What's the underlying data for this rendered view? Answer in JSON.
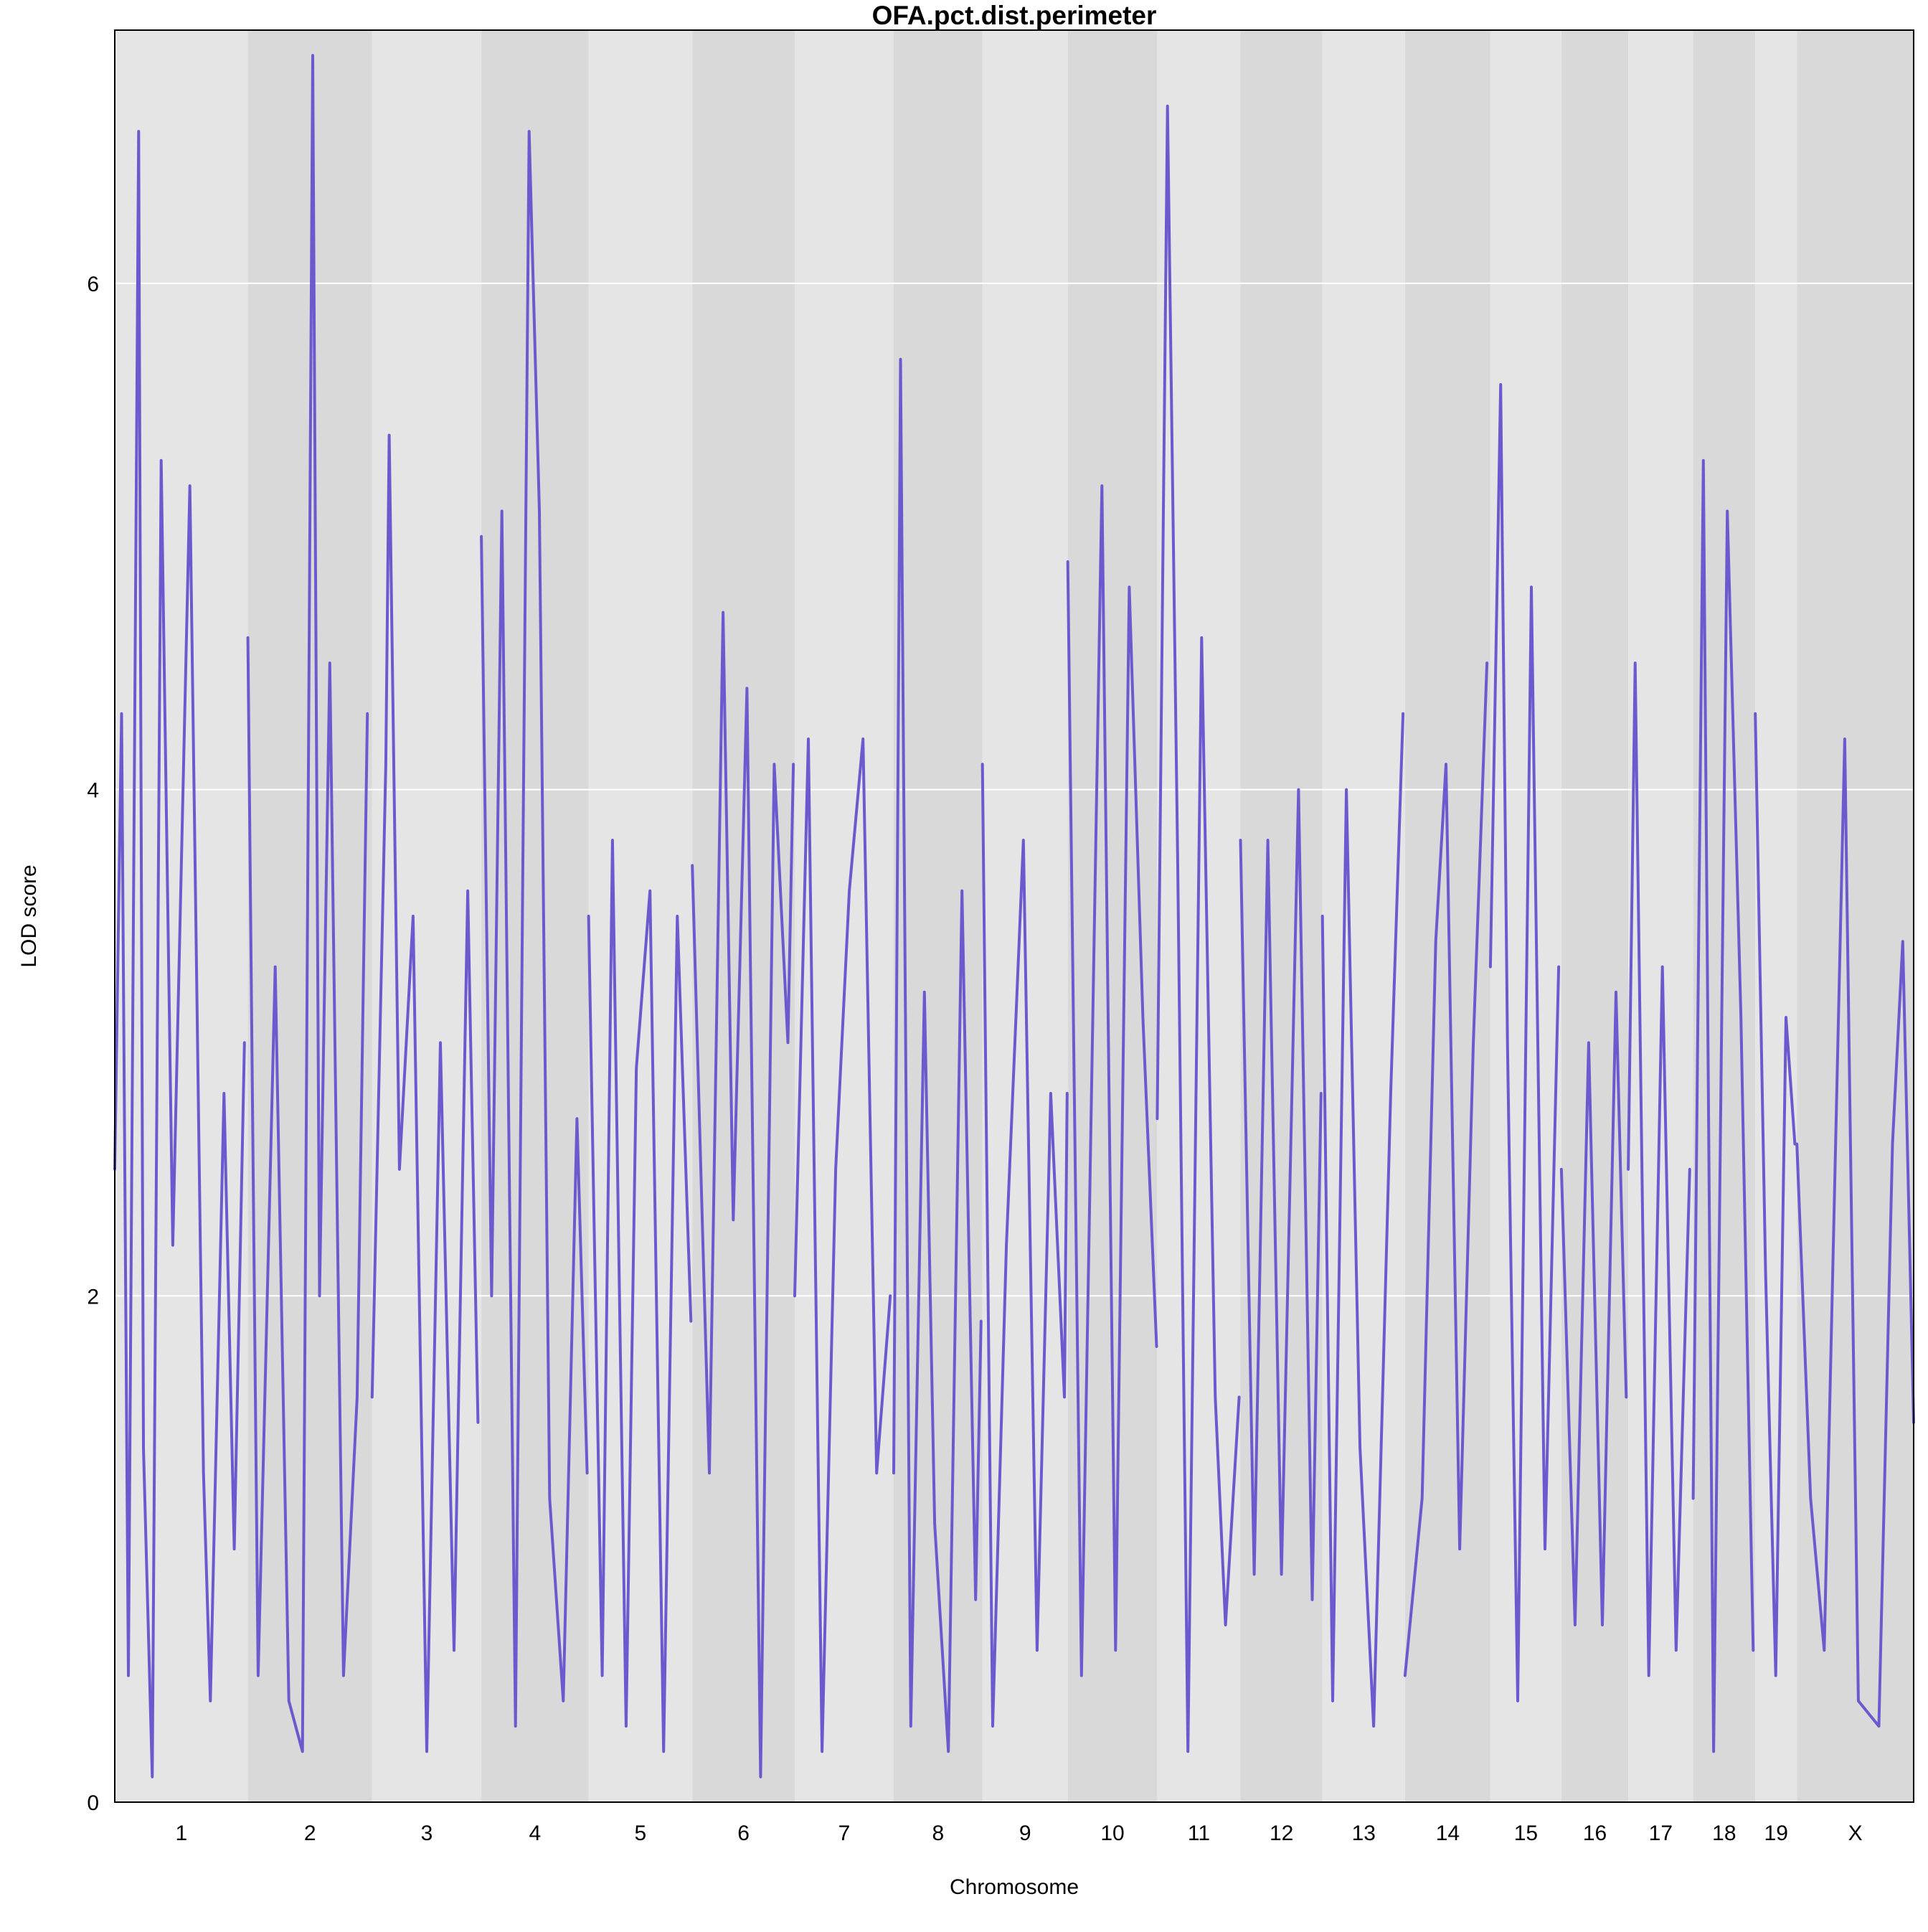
{
  "chart_data": {
    "type": "line",
    "title": "OFA.pct.dist.perimeter",
    "xlabel": "Chromosome",
    "ylabel": "LOD score",
    "ylim": [
      0,
      7
    ],
    "yticks": [
      0,
      2,
      4,
      6
    ],
    "grid": true,
    "colors": {
      "line": "#6A5ACD",
      "band_light": "#E5E5E5",
      "band_dark": "#D9D9D9",
      "gridline": "#FFFFFF",
      "frame": "#000000"
    },
    "chromosomes": [
      {
        "name": "1",
        "length": 195
      },
      {
        "name": "2",
        "length": 182
      },
      {
        "name": "3",
        "length": 160
      },
      {
        "name": "4",
        "length": 157
      },
      {
        "name": "5",
        "length": 152
      },
      {
        "name": "6",
        "length": 150
      },
      {
        "name": "7",
        "length": 145
      },
      {
        "name": "8",
        "length": 130
      },
      {
        "name": "9",
        "length": 125
      },
      {
        "name": "10",
        "length": 131
      },
      {
        "name": "11",
        "length": 122
      },
      {
        "name": "12",
        "length": 120
      },
      {
        "name": "13",
        "length": 121
      },
      {
        "name": "14",
        "length": 125
      },
      {
        "name": "15",
        "length": 104
      },
      {
        "name": "16",
        "length": 98
      },
      {
        "name": "17",
        "length": 95
      },
      {
        "name": "18",
        "length": 91
      },
      {
        "name": "19",
        "length": 61
      },
      {
        "name": "X",
        "length": 171
      }
    ],
    "series": [
      {
        "values": [
          [
            [
              0,
              2.5
            ],
            [
              10,
              4.3
            ],
            [
              20,
              0.5
            ],
            [
              30,
              4.6
            ],
            [
              35,
              6.6
            ],
            [
              42,
              1.4
            ],
            [
              55,
              0.1
            ],
            [
              68,
              5.3
            ],
            [
              85,
              2.2
            ],
            [
              110,
              5.2
            ],
            [
              130,
              1.3
            ],
            [
              140,
              0.4
            ],
            [
              160,
              2.8
            ],
            [
              175,
              1.0
            ],
            [
              190,
              3.0
            ]
          ],
          [
            [
              0,
              4.6
            ],
            [
              15,
              0.5
            ],
            [
              40,
              3.3
            ],
            [
              60,
              0.4
            ],
            [
              80,
              0.2
            ],
            [
              95,
              6.9
            ],
            [
              105,
              2.0
            ],
            [
              120,
              4.5
            ],
            [
              140,
              0.5
            ],
            [
              160,
              1.6
            ],
            [
              175,
              4.3
            ]
          ],
          [
            [
              0,
              1.6
            ],
            [
              20,
              4.1
            ],
            [
              25,
              5.4
            ],
            [
              40,
              2.5
            ],
            [
              60,
              3.5
            ],
            [
              80,
              0.2
            ],
            [
              100,
              3.0
            ],
            [
              120,
              0.6
            ],
            [
              140,
              3.6
            ],
            [
              155,
              1.5
            ]
          ],
          [
            [
              0,
              5.0
            ],
            [
              15,
              2.0
            ],
            [
              30,
              5.1
            ],
            [
              50,
              0.3
            ],
            [
              70,
              6.6
            ],
            [
              85,
              5.1
            ],
            [
              100,
              1.2
            ],
            [
              120,
              0.4
            ],
            [
              140,
              2.7
            ],
            [
              155,
              1.3
            ]
          ],
          [
            [
              0,
              3.5
            ],
            [
              20,
              0.5
            ],
            [
              35,
              3.8
            ],
            [
              55,
              0.3
            ],
            [
              70,
              2.9
            ],
            [
              90,
              3.6
            ],
            [
              110,
              0.2
            ],
            [
              130,
              3.5
            ],
            [
              150,
              1.9
            ]
          ],
          [
            [
              0,
              3.7
            ],
            [
              25,
              1.3
            ],
            [
              45,
              4.7
            ],
            [
              60,
              2.3
            ],
            [
              80,
              4.4
            ],
            [
              100,
              0.1
            ],
            [
              120,
              4.1
            ],
            [
              140,
              3.0
            ],
            [
              148,
              4.1
            ]
          ],
          [
            [
              0,
              2.0
            ],
            [
              20,
              4.2
            ],
            [
              40,
              0.2
            ],
            [
              60,
              2.5
            ],
            [
              80,
              3.6
            ],
            [
              100,
              4.2
            ],
            [
              120,
              1.3
            ],
            [
              140,
              2.0
            ]
          ],
          [
            [
              0,
              1.3
            ],
            [
              10,
              5.7
            ],
            [
              25,
              0.3
            ],
            [
              45,
              3.2
            ],
            [
              60,
              1.1
            ],
            [
              80,
              0.2
            ],
            [
              100,
              3.6
            ],
            [
              120,
              0.8
            ],
            [
              128,
              1.9
            ]
          ],
          [
            [
              0,
              4.1
            ],
            [
              15,
              0.3
            ],
            [
              35,
              2.2
            ],
            [
              60,
              3.8
            ],
            [
              80,
              0.6
            ],
            [
              100,
              2.8
            ],
            [
              120,
              1.6
            ],
            [
              124,
              2.8
            ]
          ],
          [
            [
              0,
              4.9
            ],
            [
              20,
              0.5
            ],
            [
              50,
              5.2
            ],
            [
              70,
              0.6
            ],
            [
              90,
              4.8
            ],
            [
              110,
              3.1
            ],
            [
              130,
              1.8
            ]
          ],
          [
            [
              0,
              2.7
            ],
            [
              15,
              6.7
            ],
            [
              30,
              3.7
            ],
            [
              45,
              0.2
            ],
            [
              65,
              4.6
            ],
            [
              85,
              1.6
            ],
            [
              100,
              0.7
            ],
            [
              120,
              1.6
            ]
          ],
          [
            [
              0,
              3.8
            ],
            [
              20,
              0.9
            ],
            [
              40,
              3.8
            ],
            [
              60,
              0.9
            ],
            [
              85,
              4.0
            ],
            [
              105,
              0.8
            ],
            [
              118,
              2.8
            ]
          ],
          [
            [
              0,
              3.5
            ],
            [
              15,
              0.4
            ],
            [
              35,
              4.0
            ],
            [
              55,
              1.4
            ],
            [
              75,
              0.3
            ],
            [
              100,
              2.8
            ],
            [
              118,
              4.3
            ]
          ],
          [
            [
              0,
              0.5
            ],
            [
              25,
              1.2
            ],
            [
              45,
              3.4
            ],
            [
              60,
              4.1
            ],
            [
              80,
              1.0
            ],
            [
              100,
              3.0
            ],
            [
              120,
              4.5
            ]
          ],
          [
            [
              0,
              3.3
            ],
            [
              15,
              5.6
            ],
            [
              25,
              3.0
            ],
            [
              40,
              0.4
            ],
            [
              60,
              4.8
            ],
            [
              80,
              1.0
            ],
            [
              100,
              3.3
            ]
          ],
          [
            [
              0,
              2.5
            ],
            [
              20,
              0.7
            ],
            [
              40,
              3.0
            ],
            [
              60,
              0.7
            ],
            [
              80,
              3.2
            ],
            [
              95,
              1.6
            ]
          ],
          [
            [
              0,
              2.5
            ],
            [
              10,
              4.5
            ],
            [
              30,
              0.5
            ],
            [
              50,
              3.3
            ],
            [
              70,
              0.6
            ],
            [
              90,
              2.5
            ]
          ],
          [
            [
              0,
              1.2
            ],
            [
              15,
              5.3
            ],
            [
              30,
              0.2
            ],
            [
              50,
              5.1
            ],
            [
              70,
              3.1
            ],
            [
              88,
              0.6
            ]
          ],
          [
            [
              0,
              4.3
            ],
            [
              15,
              2.1
            ],
            [
              30,
              0.5
            ],
            [
              45,
              3.1
            ],
            [
              58,
              2.6
            ]
          ],
          [
            [
              0,
              2.6
            ],
            [
              20,
              1.2
            ],
            [
              40,
              0.6
            ],
            [
              70,
              4.2
            ],
            [
              90,
              0.4
            ],
            [
              120,
              0.3
            ],
            [
              140,
              2.6
            ],
            [
              155,
              3.4
            ],
            [
              171,
              1.5
            ]
          ]
        ]
      }
    ]
  }
}
